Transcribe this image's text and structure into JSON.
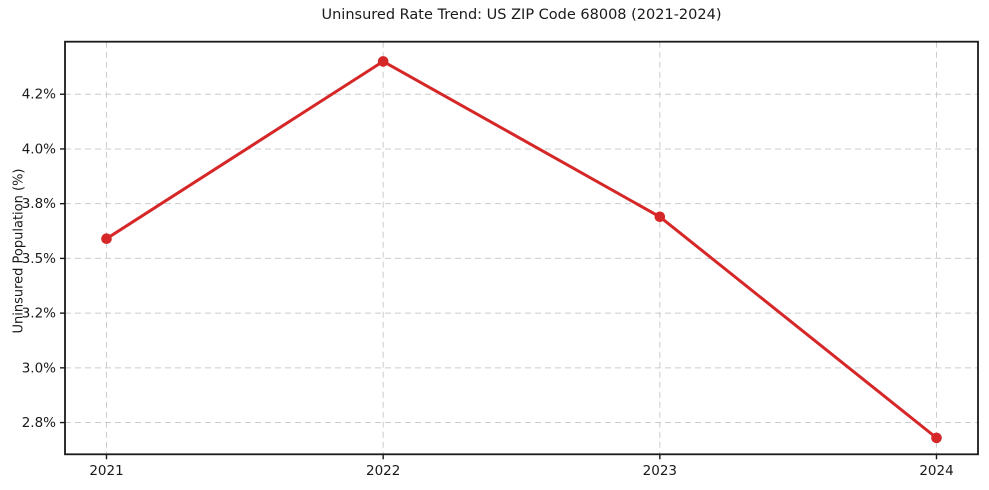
{
  "figure": {
    "title": "Uninsured Rate Trend: US ZIP Code 68008 (2021-2024)"
  },
  "chart_data": {
    "type": "line",
    "title": "Uninsured Rate Trend: US ZIP Code 68008 (2021-2024)",
    "xlabel": "",
    "ylabel": "Uninsured Population (%)",
    "x": [
      2021,
      2022,
      2023,
      2024
    ],
    "x_tick_labels": [
      "2021",
      "2022",
      "2023",
      "2024"
    ],
    "series": [
      {
        "name": "Uninsured rate",
        "values": [
          3.59,
          4.4,
          3.69,
          2.68
        ]
      }
    ],
    "y_ticks": [
      {
        "value": 2.75,
        "label": "2.8%"
      },
      {
        "value": 3.0,
        "label": "3.0%"
      },
      {
        "value": 3.25,
        "label": "3.2%"
      },
      {
        "value": 3.5,
        "label": "3.5%"
      },
      {
        "value": 3.75,
        "label": "3.8%"
      },
      {
        "value": 4.0,
        "label": "4.0%"
      },
      {
        "value": 4.25,
        "label": "4.2%"
      }
    ],
    "ylim": [
      2.605,
      4.49
    ],
    "xlim": [
      2020.85,
      2024.15
    ],
    "grid": true,
    "grid_style": "dashed",
    "legend": "none",
    "style": {
      "line_color": "#d62728",
      "marker": "circle",
      "marker_radius": 5.3,
      "line_width": 3,
      "grid_color": "#cccccc",
      "axis_color": "#1a1a1a",
      "tick_label_color": "#1a1a1a",
      "background": "#ffffff"
    }
  }
}
